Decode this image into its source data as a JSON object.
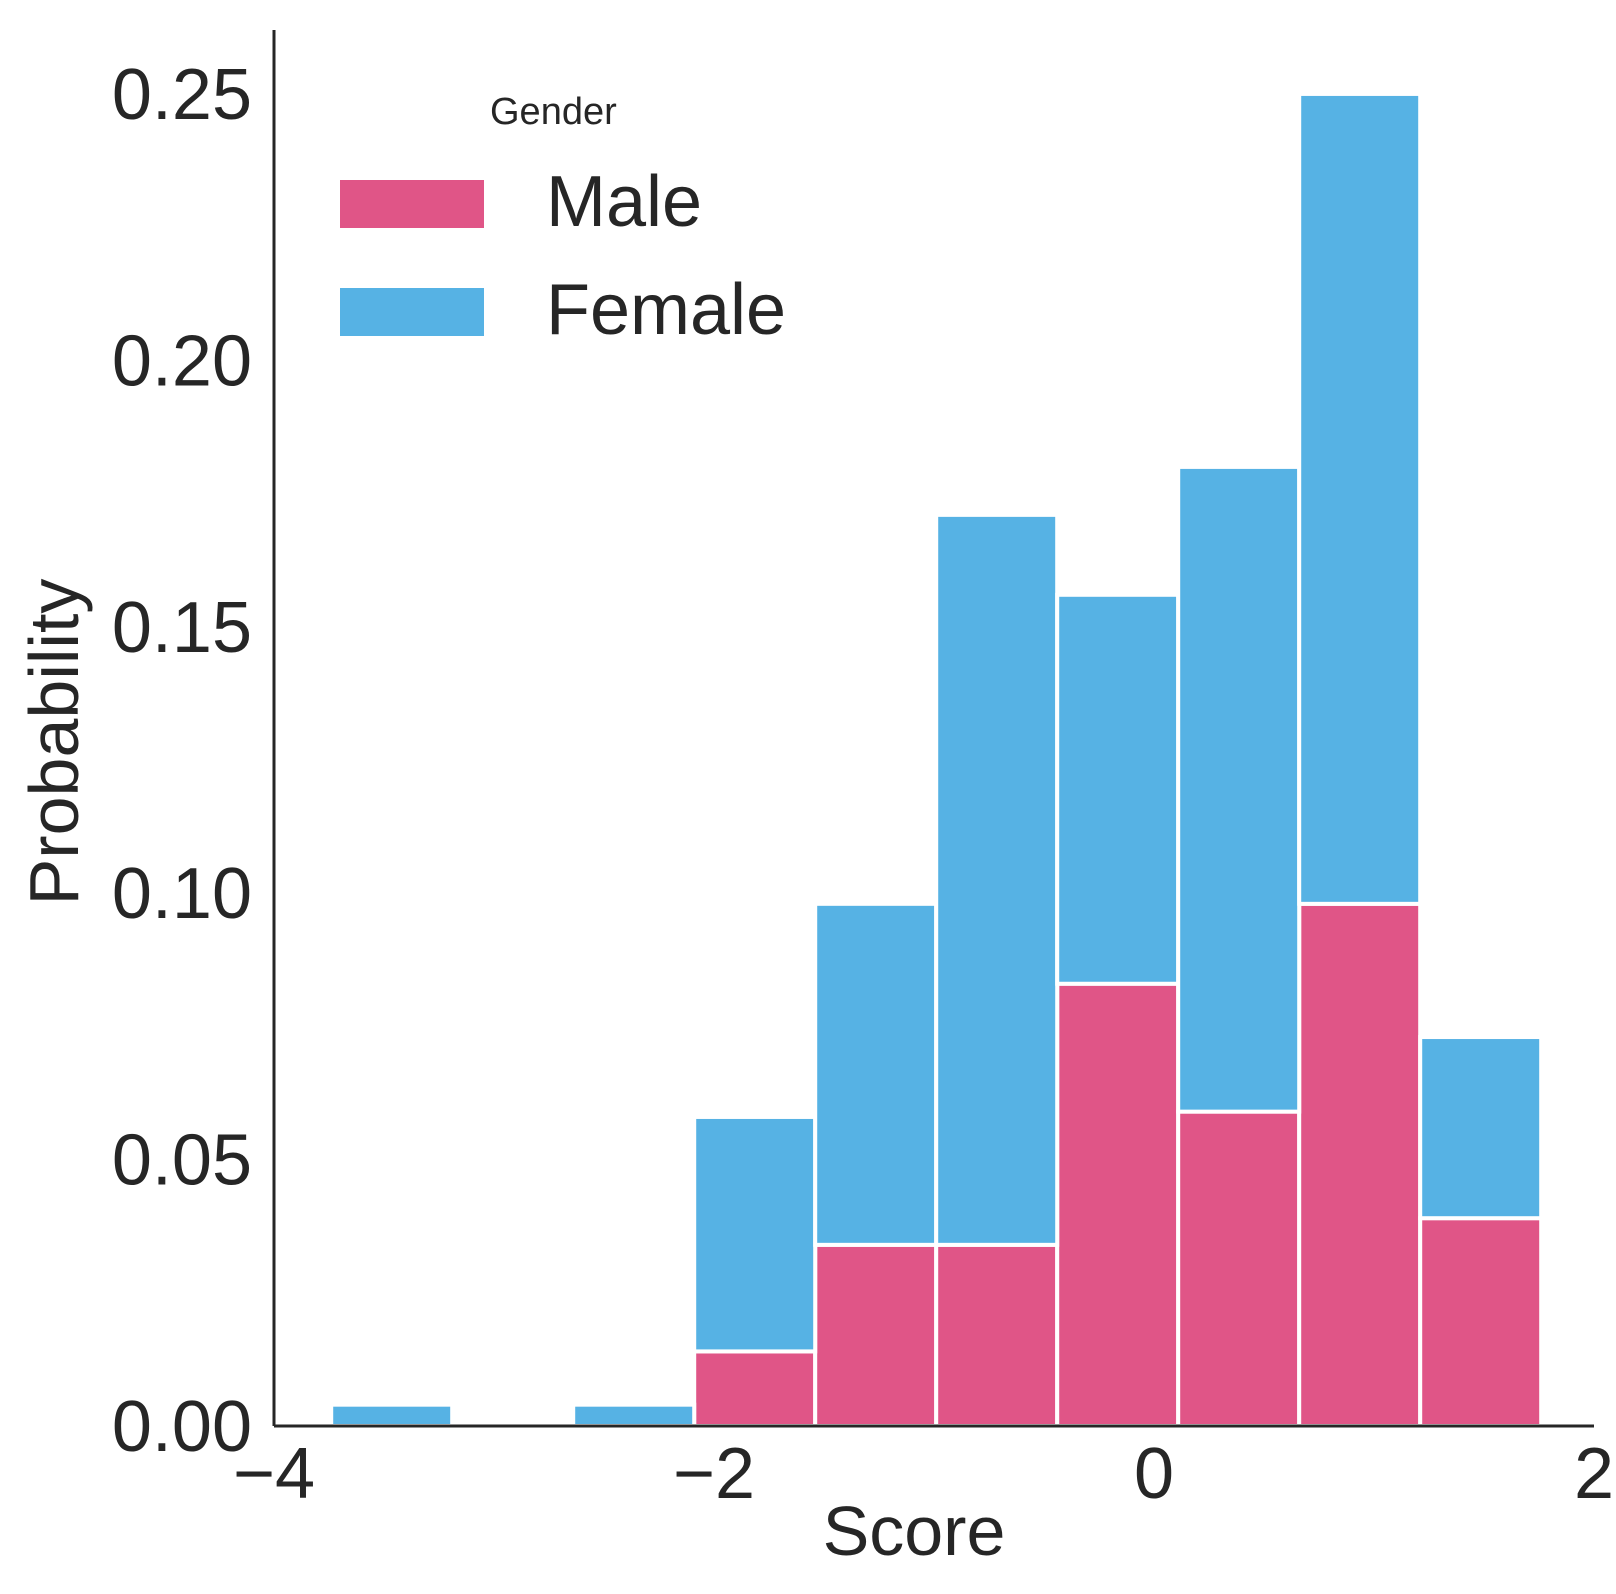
{
  "chart_data": {
    "type": "bar",
    "stacked": true,
    "histogram": true,
    "title": "",
    "xlabel": "Score",
    "ylabel": "Probability",
    "xlim": [
      -4.0,
      2.0
    ],
    "ylim": [
      0.0,
      0.262
    ],
    "x_ticks": [
      -4,
      -2,
      0,
      2
    ],
    "x_tick_labels": [
      "−4",
      "−2",
      "0",
      "2"
    ],
    "y_ticks": [
      0.0,
      0.05,
      0.1,
      0.15,
      0.2,
      0.25
    ],
    "y_tick_labels": [
      "0.00",
      "0.05",
      "0.10",
      "0.15",
      "0.20",
      "0.25"
    ],
    "bin_edges": [
      -3.74,
      -3.19,
      -2.64,
      -2.09,
      -1.54,
      -0.99,
      -0.44,
      0.11,
      0.66,
      1.21,
      1.76
    ],
    "series": [
      {
        "name": "Male",
        "color": "#e05587",
        "values": [
          0.0,
          0.0,
          0.0,
          0.014,
          0.034,
          0.034,
          0.083,
          0.059,
          0.098,
          0.039
        ]
      },
      {
        "name": "Female",
        "color": "#56b2e4",
        "values": [
          0.004,
          0.0,
          0.004,
          0.044,
          0.064,
          0.137,
          0.073,
          0.121,
          0.152,
          0.034
        ]
      }
    ],
    "legend": {
      "title": "Gender",
      "position": "top-left",
      "entries": [
        "Male",
        "Female"
      ]
    },
    "grid": false
  }
}
